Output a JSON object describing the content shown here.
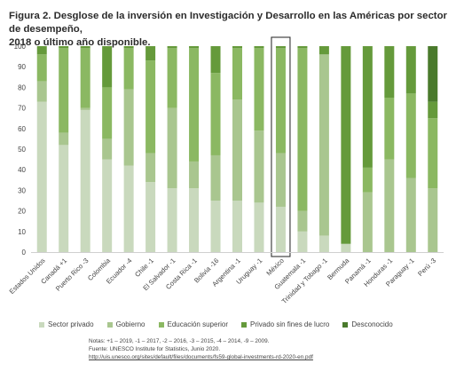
{
  "title_lines": [
    "Figura 2. Desglose de la inversión en Investigación y Desarrollo en las Américas por sector de desempeño,",
    "2018 o último año disponible."
  ],
  "chart_data": {
    "type": "bar",
    "stacked": true,
    "categories": [
      "Estados Unidos",
      "Canadá +1",
      "Puerto Rico -3",
      "Colombia",
      "Ecuador -4",
      "Chile -1",
      "El Salvador -1",
      "Costa Rica -1",
      "Bolivia -16",
      "Argentina -1",
      "Uruguay -1",
      "México",
      "Guatemala -1",
      "Trinidad y Tobago -1",
      "Bermuda",
      "Panamá -1",
      "Honduras -1",
      "Paraguay -1",
      "Perú -3"
    ],
    "series": [
      {
        "name": "Sector privado",
        "color": "#c9d9bd",
        "values": [
          73,
          52,
          69,
          45,
          42,
          34,
          31,
          31,
          25,
          25,
          24,
          22,
          10,
          8,
          4,
          0,
          0,
          0,
          0
        ]
      },
      {
        "name": "Gobierno",
        "color": "#a9c68f",
        "values": [
          10,
          6,
          1,
          10,
          37,
          14,
          39,
          13,
          22,
          49,
          35,
          26,
          10,
          88,
          0,
          29,
          45,
          36,
          31
        ]
      },
      {
        "name": "Educación superior",
        "color": "#8bb862",
        "values": [
          13,
          41,
          29,
          25,
          20,
          45,
          29,
          55,
          40,
          25,
          40,
          51,
          79,
          0,
          0,
          12,
          30,
          41,
          34
        ]
      },
      {
        "name": "Privado sin fines de lucro",
        "color": "#659a3b",
        "values": [
          4,
          1,
          1,
          20,
          1,
          7,
          1,
          1,
          13,
          1,
          1,
          1,
          1,
          4,
          96,
          59,
          25,
          23,
          8
        ]
      },
      {
        "name": "Desconocido",
        "color": "#4a7a2c",
        "values": [
          0,
          0,
          0,
          0,
          0,
          0,
          0,
          0,
          0,
          0,
          0,
          0,
          0,
          0,
          0,
          0,
          0,
          0,
          27
        ]
      }
    ],
    "highlighted_category": "México",
    "ylim": [
      0,
      100
    ],
    "yticks": [
      "0",
      "10",
      "20",
      "30",
      "40",
      "50",
      "60",
      "70",
      "80",
      "90",
      "100"
    ],
    "grid": false,
    "legend_position": "bottom"
  },
  "legend_labels": [
    "Sector privado",
    "Gobierno",
    "Educación superior",
    "Privado sin fines de lucro",
    "Desconocido"
  ],
  "notes": [
    "Notas: +1 – 2019, -1 – 2017, -2 – 2016, -3 – 2015, -4 – 2014, -9 – 2009.",
    "Fuente: UNESCO Institute for Statistics, Junio 2020.",
    "http://uis.unesco.org/sites/default/files/documents/fs59-global-investments-rd-2020-en.pdf"
  ]
}
